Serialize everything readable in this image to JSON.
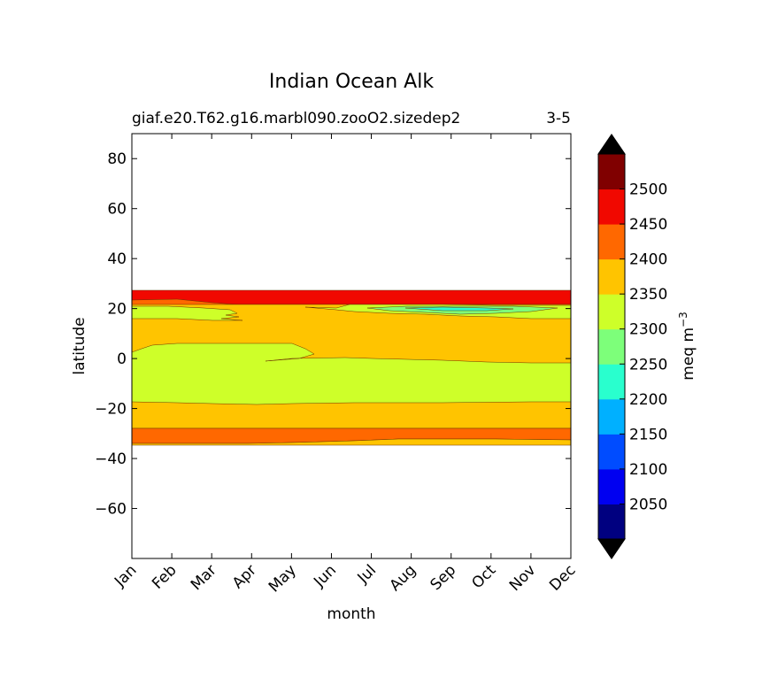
{
  "chart_data": {
    "type": "heatmap",
    "title": "Indian Ocean Alk",
    "subtitle_left": "giaf.e20.T62.g16.marbl090.zooO2.sizedep2",
    "subtitle_right": "3-5",
    "xlabel": "month",
    "ylabel": "latitude",
    "x_categories": [
      "Jan",
      "Feb",
      "Mar",
      "Apr",
      "May",
      "Jun",
      "Jul",
      "Aug",
      "Sep",
      "Oct",
      "Nov",
      "Dec"
    ],
    "xlim": [
      0,
      11
    ],
    "ylim": [
      -80,
      90
    ],
    "y_ticks": [
      80,
      60,
      40,
      20,
      0,
      -20,
      -40,
      -60
    ],
    "y_tick_labels": [
      "80",
      "60",
      "40",
      "20",
      "0",
      "−20",
      "−40",
      "−60"
    ],
    "colorbar": {
      "label_base": "meq m",
      "label_exp": "−3",
      "levels": [
        2000,
        2050,
        2100,
        2150,
        2200,
        2250,
        2300,
        2350,
        2400,
        2450,
        2500,
        2550
      ],
      "tick_labels": [
        "2050",
        "2100",
        "2150",
        "2200",
        "2250",
        "2300",
        "2350",
        "2400",
        "2450",
        "2500"
      ],
      "colors": [
        "#000080",
        "#0000f1",
        "#004cff",
        "#00b0ff",
        "#29ffce",
        "#7dff7a",
        "#ceff29",
        "#ffc400",
        "#ff6800",
        "#f10800",
        "#800000"
      ],
      "extend_low_color": "#000000",
      "extend_high_color": "#000000"
    },
    "bands": [
      {
        "band": "2450-2500",
        "lat_min": 22,
        "lat_max": 27,
        "color": "#f10800"
      },
      {
        "band": "2400-2450",
        "lat_min": 21.5,
        "lat_max": 23.5,
        "color": "#ff6800"
      },
      {
        "band": "2350-2400",
        "lat_min": -27,
        "lat_max": 22,
        "color": "#ffc400"
      },
      {
        "band": "2300-2350",
        "lat_min": -17,
        "lat_max": 6,
        "color": "#ceff29"
      },
      {
        "band": "2300-2350 north patch",
        "lat_min": 16,
        "lat_max": 21,
        "color": "#ceff29"
      },
      {
        "band": "2250-2300",
        "lat_min": 18,
        "lat_max": 21,
        "color": "#7dff7a"
      },
      {
        "band": "2200-2250",
        "lat_min": 19.5,
        "lat_max": 20.5,
        "color": "#29ffce"
      },
      {
        "band": "2400-2450 south",
        "lat_min": -33,
        "lat_max": -27,
        "color": "#ff6800"
      },
      {
        "band": "2350-2400 south edge",
        "lat_min": -34,
        "lat_max": -32,
        "color": "#ffc400"
      }
    ]
  }
}
